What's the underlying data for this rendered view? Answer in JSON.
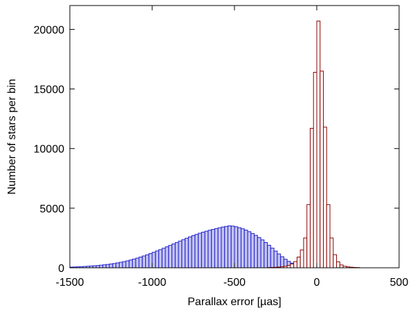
{
  "chart_data": {
    "type": "bar",
    "xlabel": "Parallax error [µas]",
    "ylabel": "Number of stars per bin",
    "xlim": [
      -1500,
      500
    ],
    "ylim": [
      0,
      22000
    ],
    "x_ticks": [
      -1500,
      -1000,
      -500,
      0,
      500
    ],
    "y_ticks": [
      0,
      5000,
      10000,
      15000,
      20000
    ],
    "grid": false,
    "bin_width": 20,
    "series": [
      {
        "color_fill": "#b8b8f0",
        "color_edge": "#2020c8",
        "x": [
          -1490,
          -1470,
          -1450,
          -1430,
          -1410,
          -1390,
          -1370,
          -1350,
          -1330,
          -1310,
          -1290,
          -1270,
          -1250,
          -1230,
          -1210,
          -1190,
          -1170,
          -1150,
          -1130,
          -1110,
          -1090,
          -1070,
          -1050,
          -1030,
          -1010,
          -990,
          -970,
          -950,
          -930,
          -910,
          -890,
          -870,
          -850,
          -830,
          -810,
          -790,
          -770,
          -750,
          -730,
          -710,
          -690,
          -670,
          -650,
          -630,
          -610,
          -590,
          -570,
          -550,
          -530,
          -510,
          -490,
          -470,
          -450,
          -430,
          -410,
          -390,
          -370,
          -350,
          -330,
          -310,
          -290,
          -270,
          -250,
          -230,
          -210,
          -190,
          -170,
          -150,
          -130,
          -110,
          -90,
          -70,
          -50,
          -30,
          -10,
          10,
          30,
          50,
          70,
          90,
          110,
          130,
          150,
          170,
          190
        ],
        "values": [
          60,
          70,
          80,
          95,
          110,
          130,
          150,
          170,
          190,
          220,
          250,
          280,
          320,
          360,
          410,
          460,
          520,
          580,
          650,
          730,
          810,
          900,
          990,
          1090,
          1190,
          1300,
          1410,
          1520,
          1640,
          1760,
          1880,
          2000,
          2120,
          2240,
          2360,
          2480,
          2590,
          2700,
          2800,
          2900,
          2990,
          3070,
          3150,
          3220,
          3290,
          3360,
          3420,
          3470,
          3520,
          3500,
          3440,
          3360,
          3270,
          3160,
          3030,
          2880,
          2720,
          2540,
          2340,
          2120,
          1890,
          1650,
          1400,
          1160,
          930,
          720,
          540,
          390,
          270,
          180,
          120,
          80,
          50,
          30,
          20,
          15,
          10,
          8,
          6,
          5,
          4,
          3,
          2,
          2,
          1
        ]
      },
      {
        "color_fill": "#ffffff",
        "color_edge": "#8b0000",
        "x": [
          -290,
          -270,
          -250,
          -230,
          -210,
          -190,
          -170,
          -150,
          -130,
          -110,
          -90,
          -70,
          -50,
          -30,
          -10,
          10,
          30,
          50,
          70,
          90,
          110,
          130,
          150,
          170,
          190,
          210,
          230,
          250
        ],
        "values": [
          20,
          30,
          40,
          60,
          90,
          130,
          200,
          320,
          520,
          900,
          1500,
          2500,
          5300,
          11700,
          16400,
          20700,
          16500,
          11800,
          5300,
          2500,
          1100,
          500,
          240,
          130,
          80,
          50,
          30,
          20
        ]
      }
    ]
  }
}
